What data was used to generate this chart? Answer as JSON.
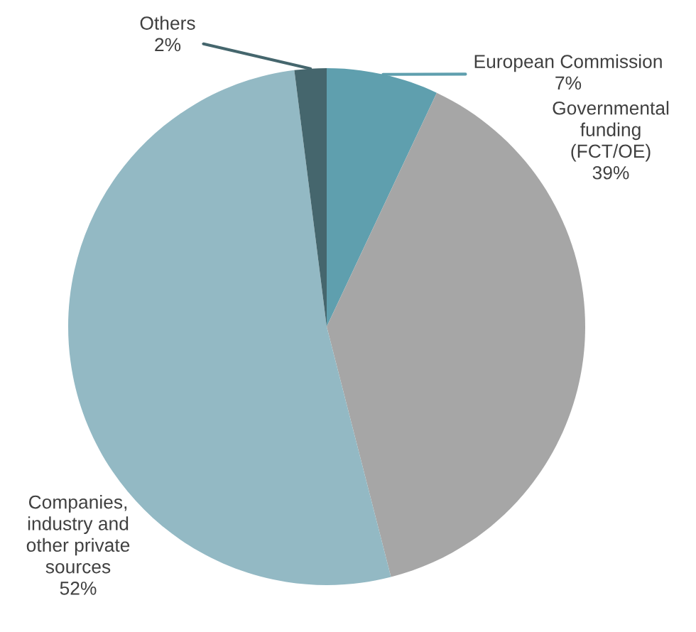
{
  "chart_data": {
    "type": "pie",
    "categories": [
      "European Commission",
      "Governmental\nfunding\n(FCT/OE)",
      "Companies,\nindustry and\nother private\nsources",
      "Others"
    ],
    "values": [
      7,
      39,
      52,
      2
    ],
    "value_labels": [
      "7%",
      "39%",
      "52%",
      "2%"
    ],
    "colors": [
      "#5f9fae",
      "#a6a6a6",
      "#93b9c4",
      "#45666d"
    ],
    "legend": false
  }
}
